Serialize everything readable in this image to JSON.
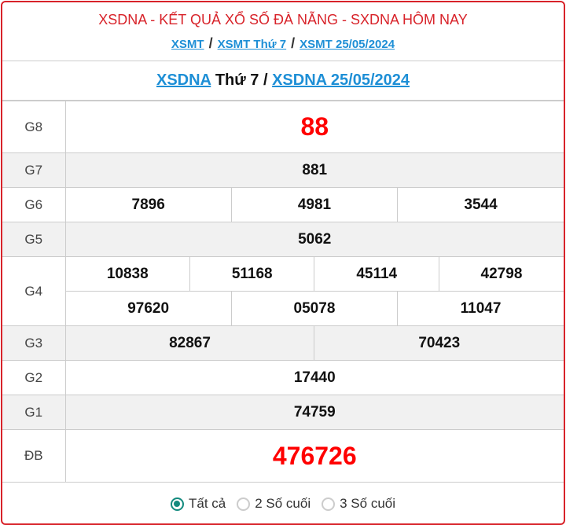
{
  "header": {
    "title": "XSDNA - KẾT QUẢ XỔ SỐ ĐÀ NẴNG - SXDNA HÔM NAY",
    "breadcrumb": [
      "XSMT",
      "XSMT Thứ 7",
      "XSMT 25/05/2024"
    ],
    "separator": "/"
  },
  "result_title": {
    "link1": "XSDNA",
    "day": " Thứ 7 / ",
    "link2": "XSDNA 25/05/2024"
  },
  "prizes": {
    "g8": {
      "label": "G8",
      "values": [
        "88"
      ]
    },
    "g7": {
      "label": "G7",
      "values": [
        "881"
      ]
    },
    "g6": {
      "label": "G6",
      "values": [
        "7896",
        "4981",
        "3544"
      ]
    },
    "g5": {
      "label": "G5",
      "values": [
        "5062"
      ]
    },
    "g4": {
      "label": "G4",
      "values": [
        "10838",
        "51168",
        "45114",
        "42798",
        "97620",
        "05078",
        "11047"
      ]
    },
    "g3": {
      "label": "G3",
      "values": [
        "82867",
        "70423"
      ]
    },
    "g2": {
      "label": "G2",
      "values": [
        "17440"
      ]
    },
    "g1": {
      "label": "G1",
      "values": [
        "74759"
      ]
    },
    "db": {
      "label": "ĐB",
      "values": [
        "476726"
      ]
    }
  },
  "filter": {
    "options": [
      "Tất cả",
      "2 Số cuối",
      "3 Số cuối"
    ],
    "selected": "Tất cả"
  },
  "colors": {
    "accent_red": "#d8232a",
    "link_blue": "#1e8fd6",
    "radio_teal": "#138a7e"
  }
}
